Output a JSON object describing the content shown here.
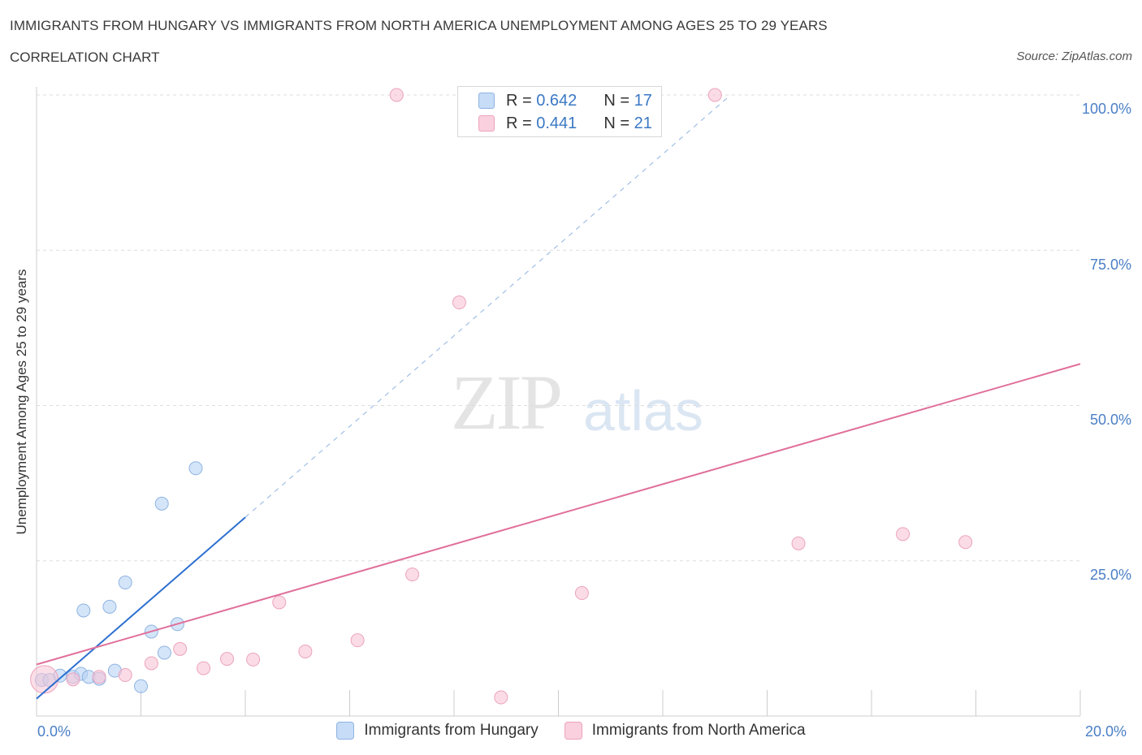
{
  "header": {
    "title": "IMMIGRANTS FROM HUNGARY VS IMMIGRANTS FROM NORTH AMERICA UNEMPLOYMENT AMONG AGES 25 TO 29 YEARS",
    "subtitle": "CORRELATION CHART",
    "source": "Source: ZipAtlas.com"
  },
  "watermark": {
    "zip": "ZIP",
    "atlas": "atlas"
  },
  "legend_top": {
    "rows": [
      {
        "r_label": "R =",
        "r_value": "0.642",
        "n_label": "N =",
        "n_value": "17",
        "color": "#b8d3f5"
      },
      {
        "r_label": "R =",
        "r_value": "0.441",
        "n_label": "N =",
        "n_value": "21",
        "color": "#f8c5d5"
      }
    ]
  },
  "chart_data": {
    "type": "scatter",
    "title": "IMMIGRANTS FROM HUNGARY VS IMMIGRANTS FROM NORTH AMERICA UNEMPLOYMENT AMONG AGES 25 TO 29 YEARS",
    "subtitle": "CORRELATION CHART",
    "xlabel": "",
    "ylabel": "Unemployment Among Ages 25 to 29 years",
    "xlim": [
      0,
      20
    ],
    "ylim": [
      0,
      100
    ],
    "x_tick_labels": [
      "0.0%",
      "20.0%"
    ],
    "y_ticks": [
      25,
      50,
      75,
      100
    ],
    "y_tick_labels": [
      "25.0%",
      "50.0%",
      "75.0%",
      "100.0%"
    ],
    "grid": true,
    "legend_position": "bottom-center",
    "series": [
      {
        "name": "Immigrants from Hungary",
        "color": "#b8d3f5",
        "line_color": "#2d6fd0",
        "R": 0.642,
        "N": 17,
        "trend": {
          "x_start": 0.0,
          "y_start": 2.8,
          "x_solid_end": 4.0,
          "y_solid_end": 32.0,
          "x_dash_end": 13.3,
          "y_dash_end": 100.0
        },
        "points": [
          {
            "x": 0.1,
            "y": 5.8
          },
          {
            "x": 0.25,
            "y": 5.8
          },
          {
            "x": 0.45,
            "y": 6.5
          },
          {
            "x": 0.7,
            "y": 6.3
          },
          {
            "x": 0.85,
            "y": 6.8
          },
          {
            "x": 0.9,
            "y": 17.0
          },
          {
            "x": 1.0,
            "y": 6.3
          },
          {
            "x": 1.2,
            "y": 6.0
          },
          {
            "x": 1.4,
            "y": 17.6
          },
          {
            "x": 1.5,
            "y": 7.3
          },
          {
            "x": 1.7,
            "y": 21.5
          },
          {
            "x": 2.0,
            "y": 4.8
          },
          {
            "x": 2.2,
            "y": 13.6
          },
          {
            "x": 2.4,
            "y": 34.2
          },
          {
            "x": 2.45,
            "y": 10.2
          },
          {
            "x": 2.7,
            "y": 14.8
          },
          {
            "x": 3.05,
            "y": 39.9
          }
        ]
      },
      {
        "name": "Immigrants from North America",
        "color": "#f8c5d5",
        "line_color": "#e0709a",
        "R": 0.441,
        "N": 21,
        "trend": {
          "x_start": 0.0,
          "y_start": 8.3,
          "x_end": 20.0,
          "y_end": 56.7
        },
        "points": [
          {
            "x": 0.15,
            "y": 5.9,
            "big": true
          },
          {
            "x": 0.7,
            "y": 5.9
          },
          {
            "x": 1.2,
            "y": 6.3
          },
          {
            "x": 1.7,
            "y": 6.6
          },
          {
            "x": 2.2,
            "y": 8.5
          },
          {
            "x": 2.75,
            "y": 10.8
          },
          {
            "x": 3.2,
            "y": 7.7
          },
          {
            "x": 3.65,
            "y": 9.2
          },
          {
            "x": 4.15,
            "y": 9.1
          },
          {
            "x": 4.65,
            "y": 18.3
          },
          {
            "x": 5.15,
            "y": 10.4
          },
          {
            "x": 6.15,
            "y": 12.2
          },
          {
            "x": 6.9,
            "y": 100.0
          },
          {
            "x": 7.2,
            "y": 22.8
          },
          {
            "x": 8.1,
            "y": 66.6
          },
          {
            "x": 8.9,
            "y": 3.0
          },
          {
            "x": 10.45,
            "y": 19.8
          },
          {
            "x": 13.0,
            "y": 100.0
          },
          {
            "x": 14.6,
            "y": 27.8
          },
          {
            "x": 16.6,
            "y": 29.3
          },
          {
            "x": 17.8,
            "y": 28.0
          }
        ]
      }
    ]
  }
}
